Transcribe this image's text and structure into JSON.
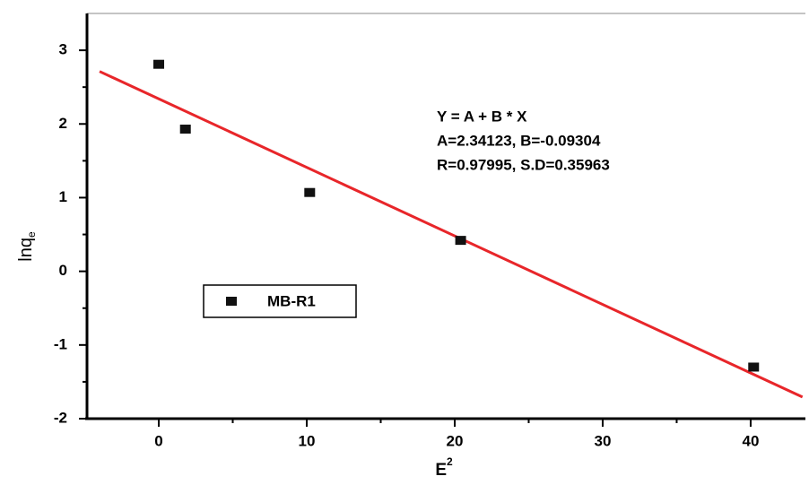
{
  "chart_data": {
    "type": "scatter",
    "x_label": "E",
    "x_label_sup": "2",
    "y_label": "lnq",
    "y_label_sub": "e",
    "annotation": [
      "Y = A + B * X",
      "A=2.34123, B=-0.09304",
      "R=0.97995, S.D=0.35963"
    ],
    "series": [
      {
        "name": "MB-R1",
        "color": "#111111",
        "x": [
          0,
          1.8,
          10.2,
          20.4,
          40.2
        ],
        "values": [
          2.81,
          1.93,
          1.07,
          0.42,
          -1.3
        ]
      }
    ],
    "fit_line": {
      "color": "#e8262a",
      "x": [
        -4,
        43.5
      ],
      "values": [
        2.713,
        -1.706
      ]
    },
    "xlim": [
      -4.85,
      43.7
    ],
    "ylim": [
      -2,
      3.5
    ],
    "xticks": [
      0,
      10,
      20,
      30,
      40
    ],
    "yticks": [
      -2,
      -1,
      0,
      1,
      2,
      3
    ],
    "xticks_minor": [
      5,
      15,
      25,
      35
    ],
    "yticks_minor": [
      -1.5,
      -0.5,
      0.5,
      1.5,
      2.5
    ],
    "legend": "center-left"
  }
}
